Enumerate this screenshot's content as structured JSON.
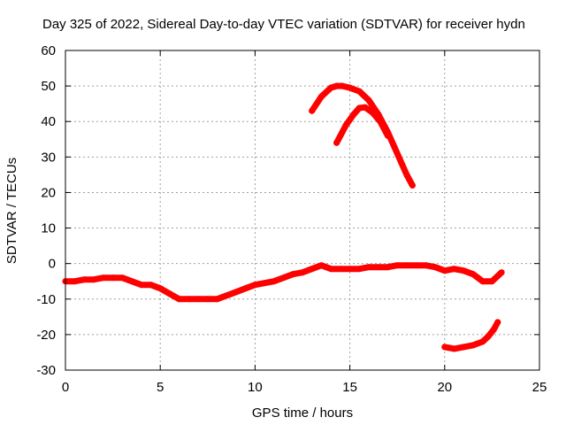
{
  "chart_data": {
    "type": "scatter",
    "title": "Day 325 of 2022, Sidereal Day-to-day VTEC variation (SDTVAR) for receiver hydn",
    "xlabel": "GPS time / hours",
    "ylabel": "SDTVAR / TECUs",
    "xlim": [
      0,
      25
    ],
    "ylim": [
      -30,
      60
    ],
    "xticks": [
      0,
      5,
      10,
      15,
      20,
      25
    ],
    "yticks": [
      -30,
      -20,
      -10,
      0,
      10,
      20,
      30,
      40,
      50,
      60
    ],
    "grid": true,
    "series_color": "#ff0000",
    "series": [
      {
        "name": "main-trace",
        "x": [
          0,
          0.5,
          1,
          1.5,
          2,
          2.5,
          3,
          3.5,
          4,
          4.5,
          5,
          5.5,
          6,
          6.5,
          7,
          7.5,
          8,
          8.5,
          9,
          9.5,
          10,
          10.5,
          11,
          11.5,
          12,
          12.5,
          13,
          13.5,
          14,
          14.5,
          15,
          15.5,
          16,
          16.5,
          17,
          17.5,
          18,
          18.5,
          19,
          19.5,
          20,
          20.5,
          21,
          21.5,
          22,
          22.5,
          23
        ],
        "y": [
          -5,
          -5,
          -4.5,
          -4.5,
          -4,
          -4,
          -4,
          -5,
          -6,
          -6,
          -7,
          -8.5,
          -10,
          -10,
          -10,
          -10,
          -10,
          -9,
          -8,
          -7,
          -6,
          -5.5,
          -5,
          -4,
          -3,
          -2.5,
          -1.5,
          -0.5,
          -1.5,
          -1.5,
          -1.5,
          -1.5,
          -1,
          -1,
          -1,
          -0.5,
          -0.5,
          -0.5,
          -0.5,
          -1,
          -2,
          -1.5,
          -2,
          -3,
          -5,
          -5,
          -2.5
        ]
      },
      {
        "name": "arc-upper",
        "x": [
          13,
          13.5,
          14,
          14.3,
          14.6,
          15,
          15.5,
          16,
          16.5,
          17,
          17.5,
          18,
          18.3
        ],
        "y": [
          43,
          47,
          49.5,
          50,
          50,
          49.5,
          48.5,
          46,
          42,
          37,
          31,
          25,
          22
        ]
      },
      {
        "name": "arc-lower",
        "x": [
          14.3,
          14.8,
          15.2,
          15.5,
          15.8,
          16.2,
          16.6,
          17
        ],
        "y": [
          34,
          39,
          42,
          43.8,
          44,
          42.5,
          40,
          36
        ]
      },
      {
        "name": "tail-trace",
        "x": [
          20,
          20.5,
          21,
          21.5,
          22,
          22.3,
          22.6,
          22.8
        ],
        "y": [
          -23.5,
          -24,
          -23.5,
          -23,
          -22,
          -20.5,
          -18.5,
          -16.5
        ]
      }
    ]
  }
}
